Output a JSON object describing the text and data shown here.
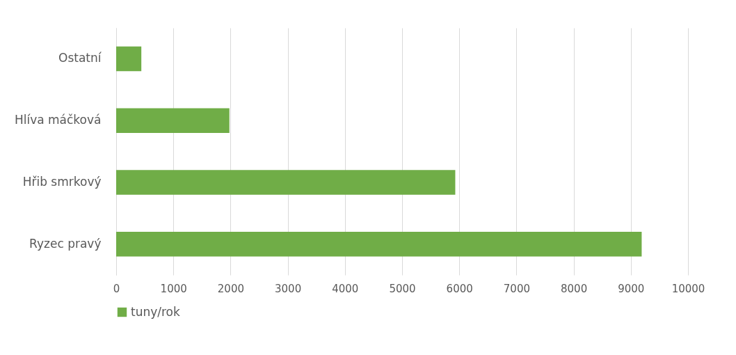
{
  "chart_data": {
    "type": "bar",
    "orientation": "horizontal",
    "categories": [
      "Ostatní",
      "Hlíva máčková",
      "Hřib smrkový",
      "Ryzec pravý"
    ],
    "series": [
      {
        "name": "tuny/rok",
        "color": "#70ad47",
        "values": [
          440,
          1980,
          5930,
          9190
        ]
      }
    ],
    "xlim": [
      0,
      10000
    ],
    "xticks": [
      0,
      1000,
      2000,
      3000,
      4000,
      5000,
      6000,
      7000,
      8000,
      9000,
      10000
    ],
    "grid": "x",
    "legend": "bottom"
  }
}
